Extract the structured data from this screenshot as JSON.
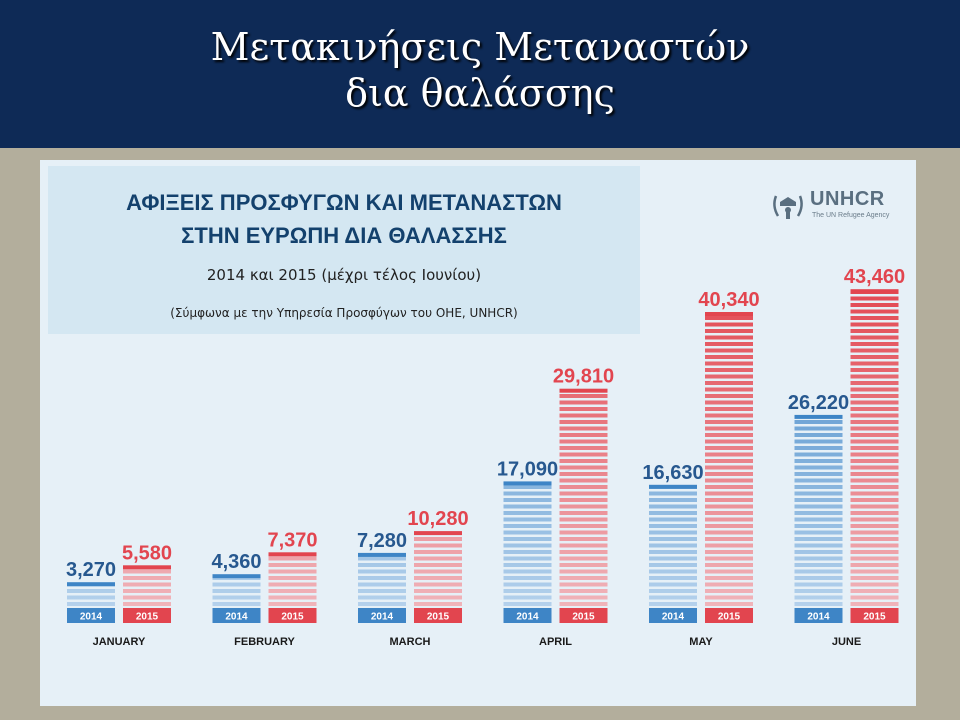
{
  "slide": {
    "title_line1": "Μετακινήσεις Μεταναστών",
    "title_line2": "δια θαλάσσης"
  },
  "infographic": {
    "title_line1": "ΑΦΙΞΕΙΣ ΠΡΟΣΦΥΓΩΝ ΚΑΙ ΜΕΤΑΝΑΣΤΩΝ",
    "title_line2": "ΣΤΗΝ ΕΥΡΩΠΗ ΔΙΑ ΘΑΛΑΣΣΗΣ",
    "subtitle": "2014 και 2015 (μέχρι τέλος Ιουνίου)",
    "source": "(Σύμφωνα με την Υπηρεσία Προσφύγων του ΟΗΕ, UNHCR)",
    "logo_text": "UNHCR",
    "logo_tagline": "The UN Refugee Agency"
  },
  "colors": {
    "header_bg": "#0e2a56",
    "series_2014": "#3e85c6",
    "series_2014_light": "#b4d1ec",
    "series_2015": "#e2454f",
    "series_2015_light": "#f0b4ba",
    "value_2014": "#27588f",
    "value_2015": "#e2454f"
  },
  "chart_data": {
    "type": "bar",
    "categories": [
      "JANUARY",
      "FEBRUARY",
      "MARCH",
      "APRIL",
      "MAY",
      "JUNE"
    ],
    "series": [
      {
        "name": "2014",
        "values": [
          3270,
          4360,
          7280,
          17090,
          16630,
          26220
        ],
        "labels": [
          "3,270",
          "4,360",
          "7,280",
          "17,090",
          "16,630",
          "26,220"
        ]
      },
      {
        "name": "2015",
        "values": [
          5580,
          7370,
          10280,
          29810,
          40340,
          43460
        ],
        "labels": [
          "5,580",
          "7,370",
          "10,280",
          "29,810",
          "40,340",
          "43,460"
        ]
      }
    ],
    "title": "ΑΦΙΞΕΙΣ ΠΡΟΣΦΥΓΩΝ ΚΑΙ ΜΕΤΑΝΑΣΤΩΝ ΣΤΗΝ ΕΥΡΩΠΗ ΔΙΑ ΘΑΛΑΣΣΗΣ",
    "xlabel": "",
    "ylabel": "",
    "ylim": [
      0,
      45000
    ],
    "grid": false,
    "legend": "none"
  }
}
